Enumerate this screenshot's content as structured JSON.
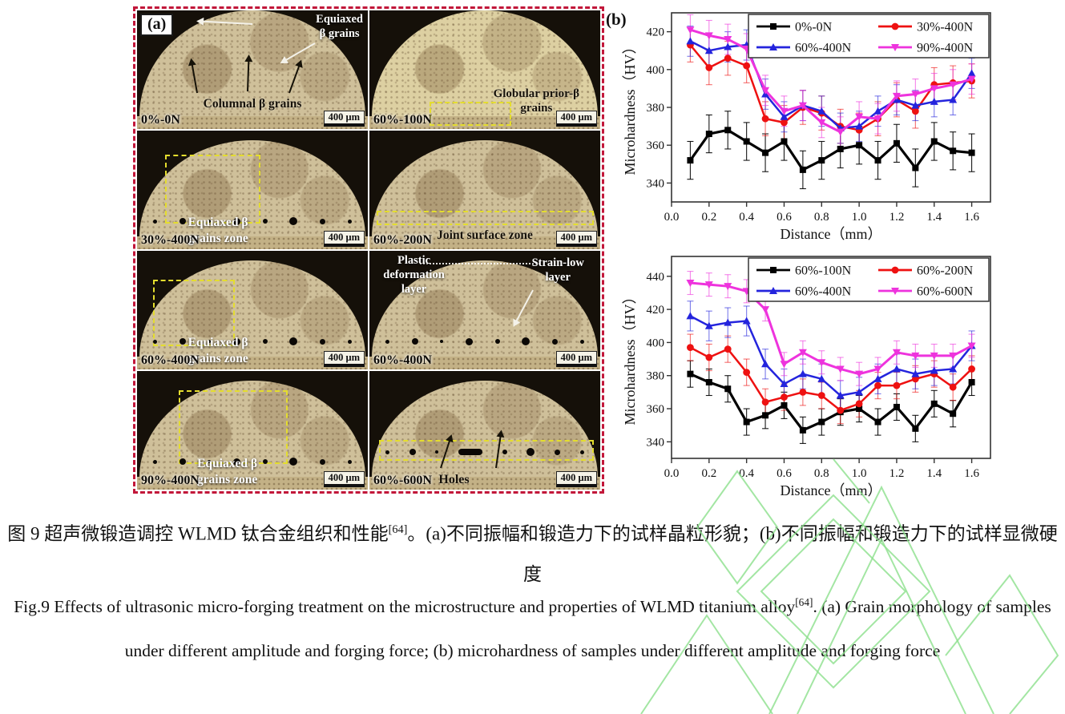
{
  "colors": {
    "panel_border": "#c2173a",
    "annotation_yellow": "#e4dd2e",
    "watermark_green": "#8ce08c",
    "series_black": "#000000",
    "series_red": "#ee1111",
    "series_blue": "#2424dd",
    "series_magenta": "#ee33dd"
  },
  "figure": {
    "panel_a_label": "(a)",
    "panel_b_label": "(b)",
    "micrographs": [
      {
        "id": "0%-0N",
        "scale_bar": "400 μm",
        "ann1": "Equiaxed\nβ grains",
        "ann2": "Columnal β grains"
      },
      {
        "id": "60%-100N",
        "scale_bar": "400 μm",
        "ann1": "Globular prior-β\ngrains"
      },
      {
        "id": "30%-400N",
        "scale_bar": "400 μm",
        "ann1": "Equiaxed β\ngrains zone"
      },
      {
        "id": "60%-200N",
        "scale_bar": "400 μm",
        "ann1": "Joint surface zone"
      },
      {
        "id": "60%-400N",
        "scale_bar": "400 μm",
        "ann1": "Equiaxed β\ngrains zone"
      },
      {
        "id": "60%-400N",
        "scale_bar": "400 μm",
        "ann1": "Plastic\ndeformation\nlayer",
        "ann2": "Strain-low\nlayer"
      },
      {
        "id": "90%-400N",
        "scale_bar": "400 μm",
        "ann1": "Equiaxed β\ngrains zone"
      },
      {
        "id": "60%-600N",
        "scale_bar": "400 μm",
        "ann1": "Holes"
      }
    ]
  },
  "chart_data": [
    {
      "type": "line",
      "title": "",
      "xlabel": "Distance（mm）",
      "ylabel": "Microhardness（HV）",
      "xlim": [
        0.0,
        1.7
      ],
      "ylim": [
        330,
        430
      ],
      "xticks": [
        0.0,
        0.2,
        0.4,
        0.6,
        0.8,
        1.0,
        1.2,
        1.4,
        1.6
      ],
      "yticks": [
        340,
        360,
        380,
        400,
        420
      ],
      "grid": false,
      "legend_position": "top-right",
      "x": [
        0.1,
        0.2,
        0.3,
        0.4,
        0.5,
        0.6,
        0.7,
        0.8,
        0.9,
        1.0,
        1.1,
        1.2,
        1.3,
        1.4,
        1.5,
        1.6
      ],
      "series": [
        {
          "name": "0%-0N",
          "color": "#000000",
          "marker": "square",
          "err": 10,
          "values": [
            352,
            366,
            368,
            362,
            356,
            362,
            347,
            352,
            358,
            360,
            352,
            361,
            348,
            362,
            357,
            356
          ]
        },
        {
          "name": "30%-400N",
          "color": "#ee1111",
          "marker": "circle",
          "err": 9,
          "values": [
            413,
            401,
            406,
            402,
            374,
            372,
            380,
            377,
            370,
            368,
            374,
            384,
            378,
            392,
            393,
            394
          ]
        },
        {
          "name": "60%-400N",
          "color": "#2424dd",
          "marker": "triangle-up",
          "err": 8,
          "values": [
            415,
            410,
            412,
            413,
            387,
            375,
            381,
            378,
            369,
            370,
            378,
            384,
            381,
            383,
            384,
            398
          ]
        },
        {
          "name": "90%-400N",
          "color": "#ee33dd",
          "marker": "triangle-down",
          "err": 8,
          "values": [
            421,
            418,
            416,
            411,
            389,
            378,
            381,
            372,
            367,
            375,
            374,
            386,
            387,
            390,
            392,
            395
          ]
        }
      ]
    },
    {
      "type": "line",
      "title": "",
      "xlabel": "Distance（mm）",
      "ylabel": "Microhardness（HV）",
      "xlim": [
        0.0,
        1.7
      ],
      "ylim": [
        330,
        452
      ],
      "xticks": [
        0.0,
        0.2,
        0.4,
        0.6,
        0.8,
        1.0,
        1.2,
        1.4,
        1.6
      ],
      "yticks": [
        340,
        360,
        380,
        400,
        420,
        440
      ],
      "grid": false,
      "legend_position": "top-right",
      "x": [
        0.1,
        0.2,
        0.3,
        0.4,
        0.5,
        0.6,
        0.7,
        0.8,
        0.9,
        1.0,
        1.1,
        1.2,
        1.3,
        1.4,
        1.5,
        1.6
      ],
      "series": [
        {
          "name": "60%-100N",
          "color": "#000000",
          "marker": "square",
          "err": 8,
          "values": [
            381,
            376,
            372,
            352,
            356,
            362,
            347,
            352,
            358,
            360,
            352,
            361,
            348,
            363,
            357,
            376
          ]
        },
        {
          "name": "60%-200N",
          "color": "#ee1111",
          "marker": "circle",
          "err": 8,
          "values": [
            397,
            391,
            396,
            382,
            364,
            367,
            370,
            368,
            359,
            363,
            374,
            374,
            378,
            381,
            373,
            384
          ]
        },
        {
          "name": "60%-400N",
          "color": "#2424dd",
          "marker": "triangle-up",
          "err": 9,
          "values": [
            416,
            410,
            412,
            413,
            387,
            375,
            381,
            378,
            368,
            370,
            378,
            384,
            381,
            383,
            384,
            398
          ]
        },
        {
          "name": "60%-600N",
          "color": "#ee33dd",
          "marker": "triangle-down",
          "err": 7,
          "values": [
            436,
            435,
            434,
            431,
            420,
            387,
            394,
            388,
            384,
            381,
            384,
            394,
            392,
            392,
            392,
            398
          ]
        }
      ]
    }
  ],
  "captions": {
    "zh_pre": "图 9 超声微锻造调控 WLMD 钛合金组织和性能",
    "zh_sup": "[64]",
    "zh_post": "。(a)不同振幅和锻造力下的试样晶粒形貌；(b)不同振幅和锻造力下的试样显微硬度",
    "en_pre": "Fig.9 Effects of ultrasonic micro-forging treatment on the microstructure and properties of WLMD titanium alloy",
    "en_sup": "[64]",
    "en_post": ". (a) Grain morphology of samples under different amplitude and forging force; (b) microhardness of samples under different amplitude and forging force"
  }
}
